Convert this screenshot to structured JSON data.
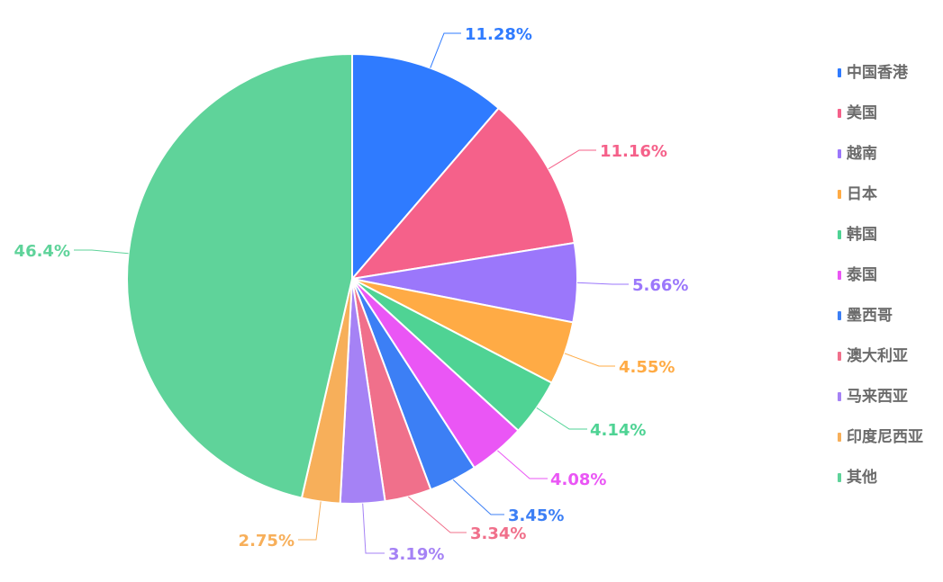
{
  "chart_data": {
    "type": "pie",
    "title": "",
    "start_angle_deg": 90,
    "direction": "clockwise",
    "categories": [
      "中国香港",
      "美国",
      "越南",
      "日本",
      "韩国",
      "泰国",
      "墨西哥",
      "澳大利亚",
      "马来西亚",
      "印度尼西亚",
      "其他"
    ],
    "values": [
      11.28,
      11.16,
      5.66,
      4.55,
      4.14,
      4.08,
      3.45,
      3.34,
      3.19,
      2.75,
      46.4
    ],
    "value_labels": [
      "11.28%",
      "11.16%",
      "5.66%",
      "4.55%",
      "4.14%",
      "4.08%",
      "3.45%",
      "3.34%",
      "3.19%",
      "2.75%",
      "46.4%"
    ],
    "colors": [
      "#2f7bff",
      "#f5618a",
      "#9b77fb",
      "#ffab45",
      "#4fd394",
      "#ea56f5",
      "#3c7ff5",
      "#f0708b",
      "#a582f5",
      "#f7af5a",
      "#5fd39a"
    ],
    "legend_position": "right"
  }
}
